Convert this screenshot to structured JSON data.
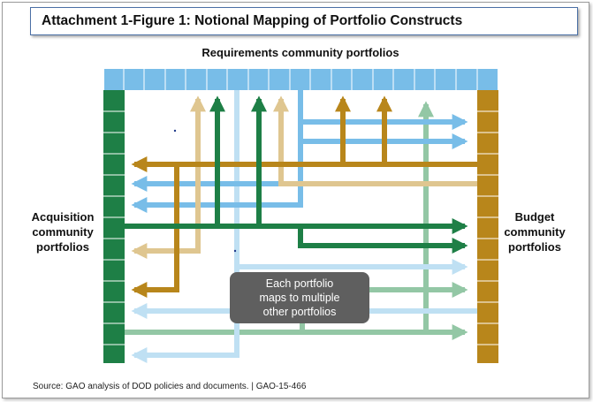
{
  "title": "Attachment 1-Figure 1: Notional Mapping of Portfolio Constructs",
  "top_label": "Requirements community portfolios",
  "left_label": "Acquisition\ncommunity\nportfolios",
  "right_label": "Budget\ncommunity\nportfolios",
  "callout": "Each portfolio\nmaps to multiple\nother portfolios",
  "source": "Source: GAO analysis of DOD policies and documents.  |  GAO-15-466",
  "colors": {
    "light_blue": "#78bde8",
    "pale_blue": "#bfe0f3",
    "dark_green": "#1e7f46",
    "light_green": "#93c7a5",
    "gold": "#b8861b",
    "tan": "#dfc690",
    "callout_bg": "#5f5f5f",
    "frame": "#4a6fa5"
  }
}
